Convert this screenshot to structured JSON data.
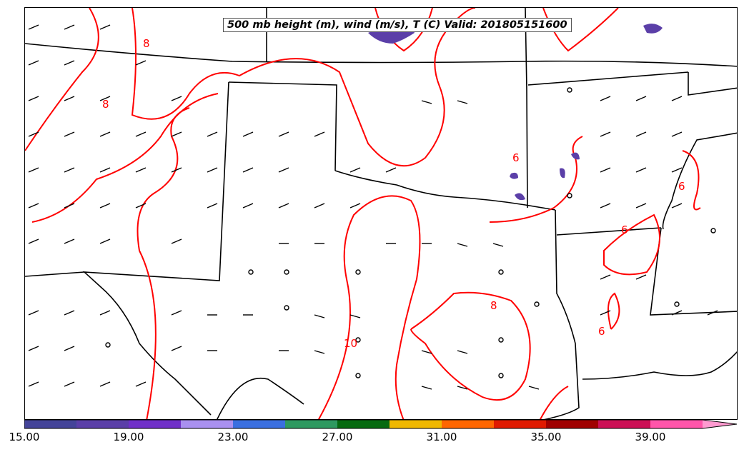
{
  "title": "500 mb height (m), wind (m/s), T (C) Valid: 201805151600",
  "colorbar": {
    "ticks": [
      "15.00",
      "19.00",
      "23.00",
      "27.00",
      "31.00",
      "35.00",
      "39.00"
    ],
    "colors": [
      "#444499",
      "#5b3fa8",
      "#7030c8",
      "#a990f0",
      "#3a6fe0",
      "#2e9960",
      "#066a10",
      "#f0b800",
      "#ff6600",
      "#e01a00",
      "#a00000",
      "#cc0f55",
      "#ff55aa"
    ],
    "extend_color": "#ff9ad0"
  },
  "contour_labels": [
    {
      "text": "8"
    },
    {
      "text": "8"
    },
    {
      "text": "6"
    },
    {
      "text": "6"
    },
    {
      "text": "6"
    },
    {
      "text": "10"
    },
    {
      "text": "8"
    },
    {
      "text": "6"
    }
  ],
  "colors": {
    "contour": "#ff0000",
    "boundary": "#000000",
    "shade": "#5b3fa8"
  }
}
